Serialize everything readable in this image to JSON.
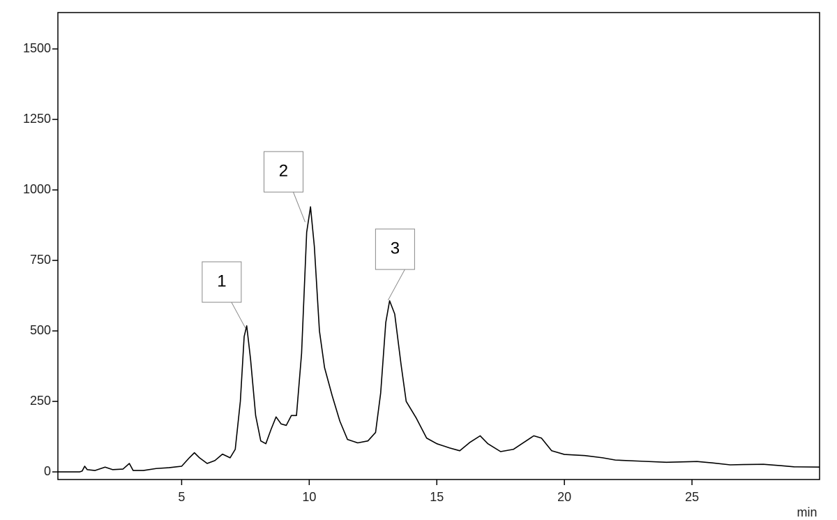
{
  "chart_data": {
    "type": "line",
    "x_label": "min",
    "x": [
      0.15,
      1.0,
      1.1,
      1.2,
      1.3,
      1.6,
      2.0,
      2.3,
      2.7,
      2.95,
      3.1,
      3.5,
      4.0,
      4.5,
      5.0,
      5.3,
      5.5,
      5.7,
      6.0,
      6.3,
      6.6,
      6.9,
      7.1,
      7.3,
      7.45,
      7.55,
      7.7,
      7.9,
      8.1,
      8.3,
      8.5,
      8.7,
      8.9,
      9.1,
      9.3,
      9.5,
      9.7,
      9.9,
      10.05,
      10.2,
      10.4,
      10.6,
      10.9,
      11.2,
      11.5,
      11.9,
      12.3,
      12.6,
      12.8,
      13.0,
      13.15,
      13.35,
      13.6,
      13.8,
      14.2,
      14.6,
      15.0,
      15.5,
      15.9,
      16.3,
      16.7,
      17.0,
      17.5,
      18.0,
      18.5,
      18.8,
      19.1,
      19.5,
      20.0,
      20.8,
      21.5,
      22.0,
      23.0,
      24.0,
      24.8,
      25.2,
      25.8,
      26.5,
      27.0,
      27.8,
      28.5,
      29.0,
      30.0
    ],
    "series": [
      {
        "color": "#000000",
        "values": [
          0,
          0,
          3,
          20,
          8,
          5,
          17,
          8,
          10,
          30,
          5,
          5,
          12,
          15,
          20,
          50,
          68,
          50,
          30,
          40,
          63,
          50,
          80,
          250,
          480,
          518,
          400,
          200,
          110,
          100,
          150,
          195,
          170,
          165,
          200,
          200,
          420,
          850,
          940,
          800,
          500,
          370,
          270,
          180,
          115,
          103,
          110,
          140,
          280,
          530,
          607,
          560,
          380,
          250,
          190,
          120,
          100,
          85,
          75,
          105,
          128,
          100,
          72,
          80,
          110,
          128,
          120,
          75,
          62,
          58,
          50,
          42,
          38,
          34,
          36,
          37,
          32,
          25,
          26,
          27,
          22,
          18,
          17
        ]
      }
    ],
    "annotations": [
      {
        "text": "1",
        "x": 7.5,
        "y": 510
      },
      {
        "text": "2",
        "x": 9.84,
        "y": 886
      },
      {
        "text": "3",
        "x": 13.09,
        "y": 609
      }
    ],
    "xlim": [
      0.15,
      30
    ],
    "ylim": [
      -27,
      1629
    ],
    "xticks": [
      5,
      10,
      15,
      20,
      25
    ],
    "yticks": [
      0,
      250,
      500,
      750,
      1000,
      1250,
      1500
    ]
  }
}
